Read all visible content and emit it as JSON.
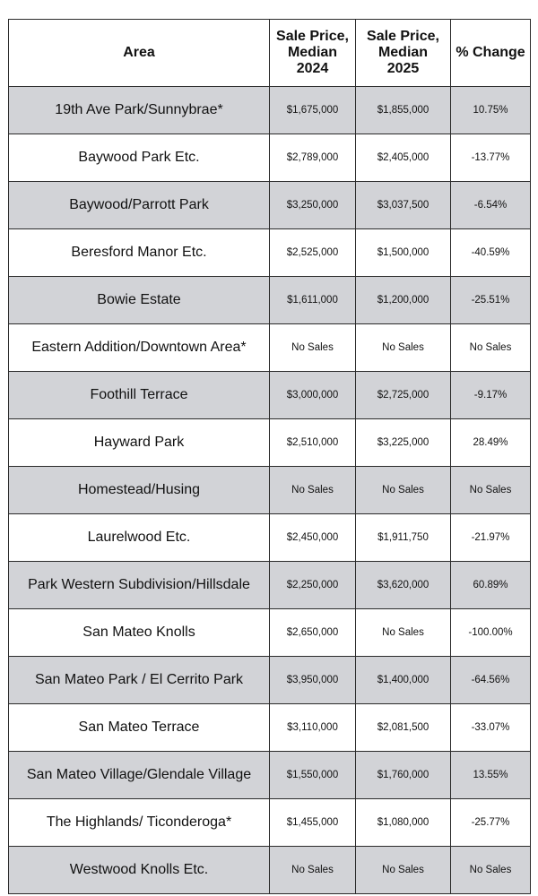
{
  "table": {
    "headers": {
      "area": "Area",
      "price_2024": [
        "Sale Price,",
        "Median",
        "2024"
      ],
      "price_2025": [
        "Sale Price,",
        "Median",
        "2025"
      ],
      "change": "% Change"
    },
    "rows": [
      {
        "area": "19th Ave Park/Sunnybrae*",
        "price_2024": "$1,675,000",
        "price_2025": "$1,855,000",
        "change": "10.75%"
      },
      {
        "area": "Baywood Park Etc.",
        "price_2024": "$2,789,000",
        "price_2025": "$2,405,000",
        "change": "-13.77%"
      },
      {
        "area": "Baywood/Parrott Park",
        "price_2024": "$3,250,000",
        "price_2025": "$3,037,500",
        "change": "-6.54%"
      },
      {
        "area": "Beresford Manor Etc.",
        "price_2024": "$2,525,000",
        "price_2025": "$1,500,000",
        "change": "-40.59%"
      },
      {
        "area": "Bowie Estate",
        "price_2024": "$1,611,000",
        "price_2025": "$1,200,000",
        "change": "-25.51%"
      },
      {
        "area": "Eastern Addition/Downtown Area*",
        "price_2024": "No Sales",
        "price_2025": "No Sales",
        "change": "No Sales"
      },
      {
        "area": "Foothill Terrace",
        "price_2024": "$3,000,000",
        "price_2025": "$2,725,000",
        "change": "-9.17%"
      },
      {
        "area": "Hayward Park",
        "price_2024": "$2,510,000",
        "price_2025": "$3,225,000",
        "change": "28.49%"
      },
      {
        "area": "Homestead/Husing",
        "price_2024": "No Sales",
        "price_2025": "No Sales",
        "change": "No Sales"
      },
      {
        "area": "Laurelwood Etc.",
        "price_2024": "$2,450,000",
        "price_2025": "$1,911,750",
        "change": "-21.97%"
      },
      {
        "area": "Park Western Subdivision/Hillsdale",
        "price_2024": "$2,250,000",
        "price_2025": "$3,620,000",
        "change": "60.89%"
      },
      {
        "area": "San Mateo Knolls",
        "price_2024": "$2,650,000",
        "price_2025": "No Sales",
        "change": "-100.00%"
      },
      {
        "area": "San Mateo Park / El Cerrito Park",
        "price_2024": "$3,950,000",
        "price_2025": "$1,400,000",
        "change": "-64.56%"
      },
      {
        "area": "San Mateo Terrace",
        "price_2024": "$3,110,000",
        "price_2025": "$2,081,500",
        "change": "-33.07%"
      },
      {
        "area": "San Mateo Village/Glendale Village",
        "price_2024": "$1,550,000",
        "price_2025": "$1,760,000",
        "change": "13.55%"
      },
      {
        "area": "The Highlands/ Ticonderoga*",
        "price_2024": "$1,455,000",
        "price_2025": "$1,080,000",
        "change": "-25.77%"
      },
      {
        "area": "Westwood Knolls Etc.",
        "price_2024": "No Sales",
        "price_2025": "No Sales",
        "change": "No Sales"
      }
    ]
  },
  "colors": {
    "shaded_row": "#d2d3d7",
    "plain_row": "#ffffff",
    "border": "#2a2a2a"
  }
}
